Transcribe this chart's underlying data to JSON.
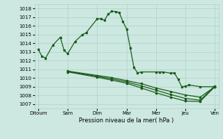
{
  "xlabel": "Pression niveau de la mer( hPa )",
  "x_labels": [
    "Ditoum",
    "Sam",
    "Dim",
    "Mar",
    "Mer",
    "Jeu",
    "Ven"
  ],
  "x_ticks": [
    0,
    8,
    16,
    24,
    32,
    40,
    48
  ],
  "ylim": [
    1006.5,
    1018.5
  ],
  "yticks": [
    1007,
    1008,
    1009,
    1010,
    1011,
    1012,
    1013,
    1014,
    1015,
    1016,
    1017,
    1018
  ],
  "bg_color": "#cce8e0",
  "grid_color": "#b0d0c8",
  "line_color": "#1a5c1a",
  "lw": 0.9,
  "ms": 2.0,
  "series": [
    {
      "x": [
        0,
        1,
        2,
        4,
        6,
        7,
        8,
        10,
        12,
        13,
        16,
        17,
        18,
        19,
        20,
        21,
        22,
        23,
        24,
        25,
        26,
        27,
        28,
        32,
        33,
        34,
        36,
        37,
        38,
        39,
        40,
        41,
        44,
        48
      ],
      "y": [
        1013.3,
        1012.5,
        1012.3,
        1013.8,
        1014.7,
        1013.2,
        1012.8,
        1014.2,
        1015.0,
        1015.2,
        1016.8,
        1016.85,
        1016.65,
        1017.35,
        1017.7,
        1017.65,
        1017.55,
        1016.5,
        1015.65,
        1013.5,
        1011.2,
        1010.6,
        1010.7,
        1010.7,
        1010.7,
        1010.7,
        1010.55,
        1010.6,
        1009.85,
        1009.0,
        1009.05,
        1009.2,
        1009.0,
        1009.0
      ]
    },
    {
      "x": [
        8,
        16,
        20,
        24,
        28,
        32,
        36,
        40,
        44,
        48
      ],
      "y": [
        1010.8,
        1010.3,
        1010.05,
        1009.7,
        1009.35,
        1008.85,
        1008.45,
        1008.05,
        1007.8,
        1009.0
      ]
    },
    {
      "x": [
        8,
        16,
        20,
        24,
        28,
        32,
        36,
        40,
        44,
        48
      ],
      "y": [
        1010.75,
        1010.2,
        1009.9,
        1009.55,
        1009.1,
        1008.6,
        1008.1,
        1007.65,
        1007.45,
        1009.1
      ]
    },
    {
      "x": [
        8,
        16,
        20,
        24,
        28,
        32,
        36,
        40,
        44,
        48
      ],
      "y": [
        1010.7,
        1010.1,
        1009.75,
        1009.4,
        1008.85,
        1008.3,
        1007.8,
        1007.35,
        1007.3,
        1009.0
      ]
    }
  ]
}
